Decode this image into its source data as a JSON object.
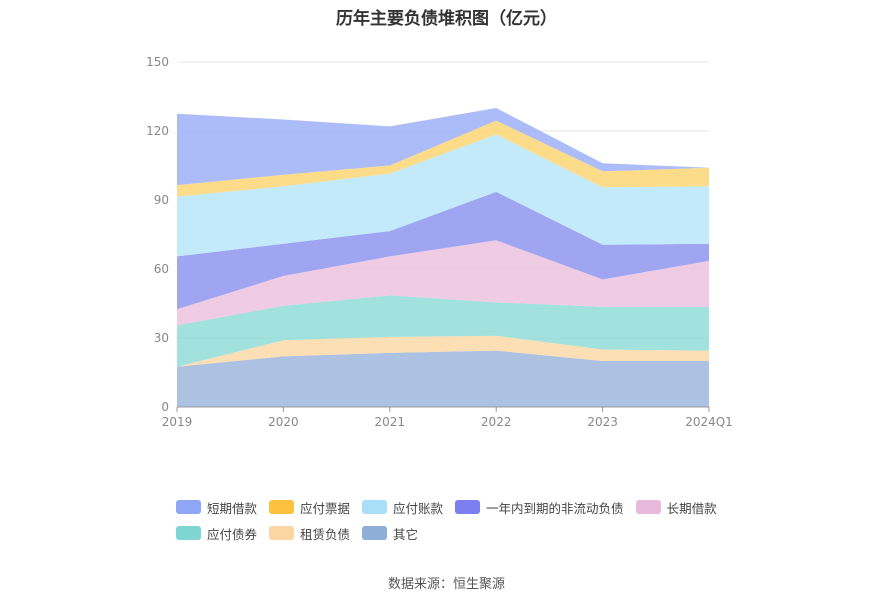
{
  "chart_data": {
    "type": "area",
    "stacked": true,
    "title": "历年主要负债堆积图（亿元）",
    "categories": [
      "2019",
      "2020",
      "2021",
      "2022",
      "2023",
      "2024Q1"
    ],
    "ylim": [
      0,
      150
    ],
    "yticks": [
      0,
      30,
      60,
      90,
      120,
      150
    ],
    "grid": true,
    "legend_position": "bottom",
    "series": [
      {
        "name": "其它",
        "color": "#9fb6dd",
        "values": [
          17.5,
          22,
          23.5,
          24.5,
          20,
          20
        ]
      },
      {
        "name": "租赁负债",
        "color": "#fbd9a8",
        "values": [
          0,
          7,
          7,
          6.5,
          5,
          4.5
        ]
      },
      {
        "name": "应付债券",
        "color": "#90dcd8",
        "values": [
          18,
          15,
          18,
          14.5,
          18.5,
          19
        ]
      },
      {
        "name": "长期借款",
        "color": "#ecc3df",
        "values": [
          7,
          13,
          17,
          27,
          12,
          20
        ]
      },
      {
        "name": "一年内到期的非流动负债",
        "color": "#8f95f0",
        "values": [
          23,
          14,
          11,
          21,
          15,
          7.5
        ]
      },
      {
        "name": "应付账款",
        "color": "#b9e6fa",
        "values": [
          26,
          25,
          25,
          25,
          25,
          25
        ]
      },
      {
        "name": "应付票据",
        "color": "#fcd574",
        "values": [
          5,
          5,
          3.5,
          6,
          7,
          8
        ]
      },
      {
        "name": "短期借款",
        "color": "#9db0f8",
        "values": [
          31,
          24,
          17,
          5.5,
          3.5,
          0
        ]
      }
    ]
  },
  "legend": {
    "row1": [
      {
        "label": "短期借款",
        "color": "#8fa6f7"
      },
      {
        "label": "应付票据",
        "color": "#fcc23f"
      },
      {
        "label": "应付账款",
        "color": "#a9dff8"
      },
      {
        "label": "一年内到期的非流动负债",
        "color": "#7b7ff0"
      },
      {
        "label": "长期借款",
        "color": "#e8b9da"
      }
    ],
    "row2": [
      {
        "label": "应付债券",
        "color": "#7fd5d1"
      },
      {
        "label": "租赁负债",
        "color": "#fbd6a0"
      },
      {
        "label": "其它",
        "color": "#8eaed8"
      }
    ]
  },
  "source": "数据来源：恒生聚源"
}
